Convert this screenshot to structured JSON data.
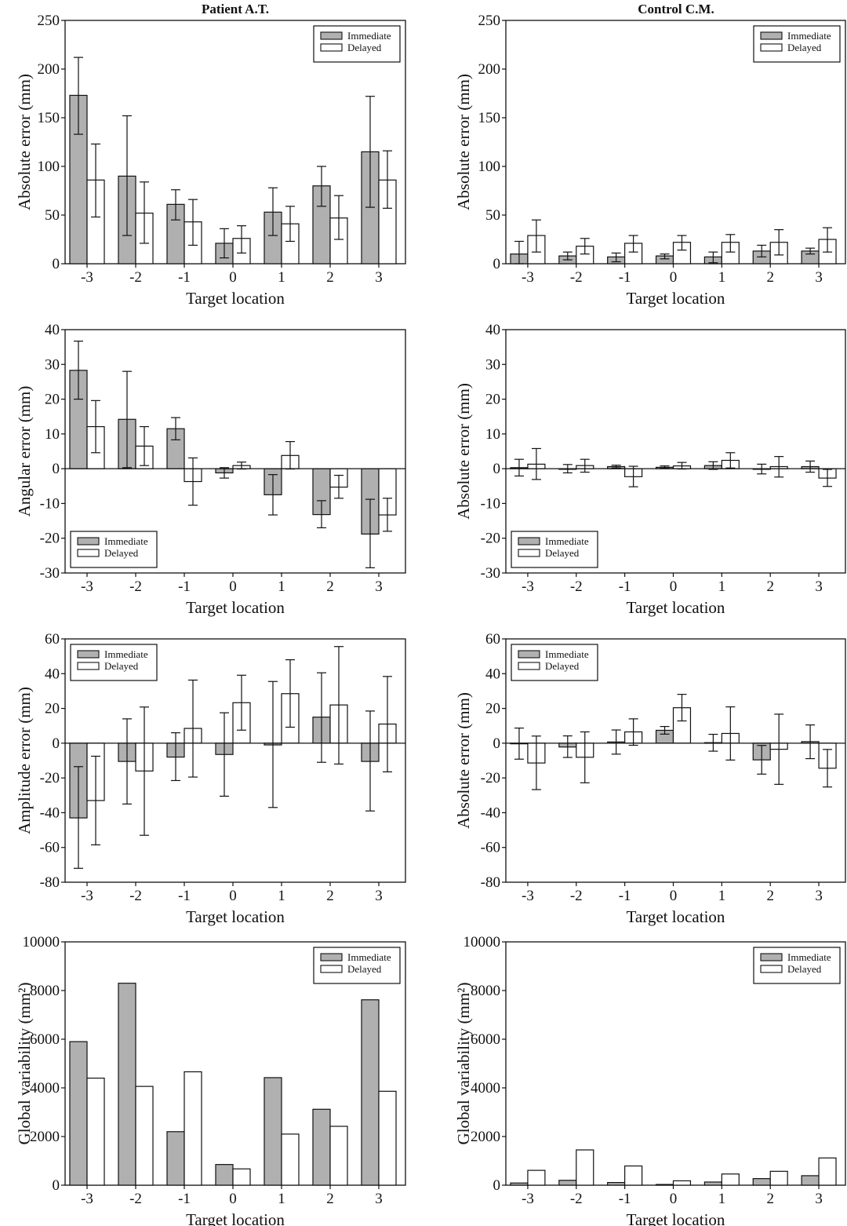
{
  "figure": {
    "column_titles": [
      "Patient A.T.",
      "Control C.M."
    ]
  },
  "legend_labels": [
    "Immediate",
    "Delayed"
  ],
  "colors": {
    "immediate": "#b0b0b0",
    "delayed": "#ffffff",
    "stroke": "#111111"
  },
  "chart_data": [
    {
      "id": "patient-absolute",
      "type": "bar",
      "title": "Patient A.T.",
      "xlabel": "Target location",
      "ylabel": "Absolute error (mm)",
      "categories": [
        "-3",
        "-2",
        "-1",
        "0",
        "1",
        "2",
        "3"
      ],
      "ylim": [
        0,
        250
      ],
      "yticks": [
        0,
        50,
        100,
        150,
        200,
        250
      ],
      "legend": "top-right",
      "series": [
        {
          "name": "Immediate",
          "values": [
            173,
            90,
            61,
            21,
            53,
            80,
            115
          ],
          "err_low": [
            133,
            29,
            45,
            6,
            29,
            59,
            58
          ],
          "err_high": [
            212,
            152,
            76,
            36,
            78,
            100,
            172
          ]
        },
        {
          "name": "Delayed",
          "values": [
            86,
            52,
            43,
            26,
            41,
            47,
            86
          ],
          "err_low": [
            48,
            21,
            19,
            11,
            23,
            25,
            57
          ],
          "err_high": [
            123,
            84,
            66,
            39,
            59,
            70,
            116
          ]
        }
      ]
    },
    {
      "id": "control-absolute",
      "type": "bar",
      "title": "Control C.M.",
      "xlabel": "Target location",
      "ylabel": "Absolute error (mm)",
      "categories": [
        "-3",
        "-2",
        "-1",
        "0",
        "1",
        "2",
        "3"
      ],
      "ylim": [
        0,
        250
      ],
      "yticks": [
        0,
        50,
        100,
        150,
        200,
        250
      ],
      "legend": "top-right",
      "series": [
        {
          "name": "Immediate",
          "values": [
            10,
            8,
            7,
            8,
            7,
            13,
            13
          ],
          "err_low": [
            0,
            4,
            2,
            5,
            1,
            7,
            10
          ],
          "err_high": [
            23,
            12,
            11,
            10,
            12,
            19,
            16
          ]
        },
        {
          "name": "Delayed",
          "values": [
            29,
            18,
            21,
            22,
            22,
            22,
            25
          ],
          "err_low": [
            12,
            10,
            12,
            14,
            12,
            9,
            12
          ],
          "err_high": [
            45,
            26,
            29,
            29,
            30,
            35,
            37
          ]
        }
      ]
    },
    {
      "id": "patient-angular",
      "type": "bar",
      "title": "",
      "xlabel": "Target location",
      "ylabel": "Angular error (mm)",
      "categories": [
        "-3",
        "-2",
        "-1",
        "0",
        "1",
        "2",
        "3"
      ],
      "ylim": [
        -30,
        40
      ],
      "yticks": [
        -30,
        -20,
        -10,
        0,
        10,
        20,
        30,
        40
      ],
      "legend": "bottom-left",
      "series": [
        {
          "name": "Immediate",
          "values": [
            28.3,
            14.2,
            11.5,
            -1.2,
            -7.5,
            -13.2,
            -18.8
          ],
          "err_low": [
            20,
            0.3,
            8.3,
            -2.7,
            -13.3,
            -17,
            -28.5
          ],
          "err_high": [
            36.7,
            28,
            14.7,
            0.3,
            -1.7,
            -9.2,
            -8.8
          ]
        },
        {
          "name": "Delayed",
          "values": [
            12.1,
            6.5,
            -3.7,
            0.9,
            3.8,
            -5.3,
            -13.3
          ],
          "err_low": [
            4.6,
            0.9,
            -10.5,
            -0.1,
            -0.1,
            -8.5,
            -18
          ],
          "err_high": [
            19.6,
            12.1,
            3.1,
            1.9,
            7.8,
            -1.9,
            -8.5
          ]
        }
      ]
    },
    {
      "id": "control-angular",
      "type": "bar",
      "title": "",
      "xlabel": "Target location",
      "ylabel": "Absolute error (mm)",
      "categories": [
        "-3",
        "-2",
        "-1",
        "0",
        "1",
        "2",
        "3"
      ],
      "ylim": [
        -30,
        40
      ],
      "yticks": [
        -30,
        -20,
        -10,
        0,
        10,
        20,
        30,
        40
      ],
      "legend": "bottom-left",
      "series": [
        {
          "name": "Immediate",
          "values": [
            0.3,
            0,
            0.6,
            0.4,
            0.9,
            -0.1,
            0.6
          ],
          "err_low": [
            -2.1,
            -1.2,
            0.2,
            0.1,
            -0.2,
            -1.5,
            -1.0
          ],
          "err_high": [
            2.7,
            1.2,
            1.0,
            0.8,
            2.0,
            1.3,
            2.2
          ]
        },
        {
          "name": "Delayed",
          "values": [
            1.3,
            0.9,
            -2.3,
            0.8,
            2.4,
            0.6,
            -2.7
          ],
          "err_low": [
            -3.1,
            -1.0,
            -5.2,
            -0.1,
            0.2,
            -2.4,
            -5.1
          ],
          "err_high": [
            5.8,
            2.7,
            0.7,
            1.8,
            4.6,
            3.5,
            -0.2
          ]
        }
      ]
    },
    {
      "id": "patient-amplitude",
      "type": "bar",
      "title": "",
      "xlabel": "Target location",
      "ylabel": "Amplitude error (mm)",
      "categories": [
        "-3",
        "-2",
        "-1",
        "0",
        "1",
        "2",
        "3"
      ],
      "ylim": [
        -80,
        60
      ],
      "yticks": [
        -80,
        -60,
        -40,
        -20,
        0,
        20,
        40,
        60
      ],
      "legend": "top-left",
      "series": [
        {
          "name": "Immediate",
          "values": [
            -43,
            -10.5,
            -8,
            -6.5,
            -1,
            15,
            -10.5
          ],
          "err_low": [
            -72,
            -35,
            -21.5,
            -30.5,
            -37,
            -11,
            -39
          ],
          "err_high": [
            -13.5,
            14,
            6,
            17.5,
            35.5,
            40.5,
            18.5
          ]
        },
        {
          "name": "Delayed",
          "values": [
            -33,
            -16,
            8.5,
            23.3,
            28.5,
            22,
            11
          ],
          "err_low": [
            -58.5,
            -53,
            -19.5,
            7.5,
            9.2,
            -12,
            -16.5
          ],
          "err_high": [
            -7.5,
            20.8,
            36.3,
            39.1,
            48,
            55.6,
            38.4
          ]
        }
      ]
    },
    {
      "id": "control-amplitude",
      "type": "bar",
      "title": "",
      "xlabel": "Target location",
      "ylabel": "Absolute error (mm)",
      "categories": [
        "-3",
        "-2",
        "-1",
        "0",
        "1",
        "2",
        "3"
      ],
      "ylim": [
        -80,
        60
      ],
      "yticks": [
        -80,
        -60,
        -40,
        -20,
        0,
        20,
        40,
        60
      ],
      "legend": "top-left",
      "series": [
        {
          "name": "Immediate",
          "values": [
            -0.3,
            -2.2,
            0.7,
            7.4,
            0.3,
            -9.6,
            0.9
          ],
          "err_low": [
            -9.2,
            -8.2,
            -6.3,
            5.2,
            -4.6,
            -17.8,
            -8.9
          ],
          "err_high": [
            8.7,
            4.2,
            7.6,
            9.6,
            5.1,
            -1.3,
            10.5
          ]
        },
        {
          "name": "Delayed",
          "values": [
            -11.4,
            -8.1,
            6.5,
            20.4,
            5.6,
            -3.5,
            -14.4
          ],
          "err_low": [
            -26.7,
            -22.8,
            -1.2,
            12.8,
            -9.7,
            -23.7,
            -25.2
          ],
          "err_high": [
            4.1,
            6.5,
            14,
            28.1,
            20.9,
            16.7,
            -3.6
          ]
        }
      ]
    },
    {
      "id": "patient-global-variability",
      "type": "bar",
      "title": "",
      "xlabel": "Target location",
      "ylabel": "Global variability (mm²)",
      "categories": [
        "-3",
        "-2",
        "-1",
        "0",
        "1",
        "2",
        "3"
      ],
      "ylim": [
        0,
        10000
      ],
      "yticks": [
        0,
        2000,
        4000,
        6000,
        8000,
        10000
      ],
      "legend": "top-right",
      "series": [
        {
          "name": "Immediate",
          "values": [
            5900,
            8300,
            2200,
            850,
            4420,
            3120,
            7620
          ]
        },
        {
          "name": "Delayed",
          "values": [
            4400,
            4060,
            4660,
            670,
            2100,
            2420,
            3860
          ]
        }
      ]
    },
    {
      "id": "control-global-variability",
      "type": "bar",
      "title": "",
      "xlabel": "Target location",
      "ylabel": "Global variability (mm²)",
      "categories": [
        "-3",
        "-2",
        "-1",
        "0",
        "1",
        "2",
        "3"
      ],
      "ylim": [
        0,
        10000
      ],
      "yticks": [
        0,
        2000,
        4000,
        6000,
        8000,
        10000
      ],
      "legend": "top-right",
      "series": [
        {
          "name": "Immediate",
          "values": [
            90,
            200,
            110,
            30,
            130,
            270,
            390
          ]
        },
        {
          "name": "Delayed",
          "values": [
            610,
            1450,
            790,
            180,
            460,
            570,
            1120
          ]
        }
      ]
    }
  ]
}
